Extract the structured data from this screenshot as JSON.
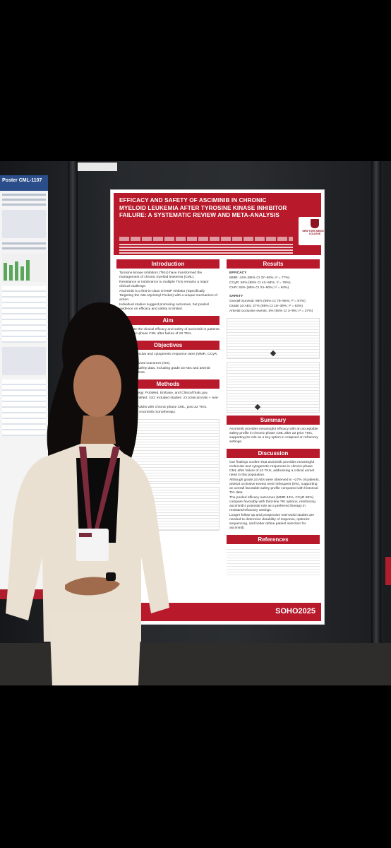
{
  "poster": {
    "title": "EFFICACY AND SAFETY OF ASCIMINIB IN CHRONIC MYELOID LEUKEMIA AFTER TYROSINE KINASE INHIBITOR FAILURE: A SYSTEMATIC REVIEW AND META-ANALYSIS",
    "institution": "NEW YORK MEDICAL COLLEGE",
    "sections": {
      "introduction": "Introduction",
      "aim": "Aim",
      "objectives": "Objectives",
      "methods": "Methods",
      "results": "Results",
      "summary": "Summary",
      "discussion": "Discussion",
      "references": "References"
    },
    "introduction_items": [
      "Tyrosine kinase inhibitors (TKIs) have transformed the management of chronic myeloid leukemia (CML).",
      "Resistance or intolerance to multiple TKIs remains a major clinical challenge.",
      "Asciminib is a first-in-class STAMP inhibitor (Specifically Targeting the ABL Myristoyl Pocket) with a unique mechanism of action.",
      "Individual studies suggest promising outcomes, but pooled evidence on efficacy and safety is limited."
    ],
    "aim_text": "To evaluate the clinical efficacy and safety of asciminib in patients with chronic-phase CML after failure of ≥2 TKIs.",
    "objectives_items": [
      "Assess molecular and cytogenetic response rates (MMR, CCyR, CHR).",
      "Evaluate survival outcomes (OS).",
      "Summarize safety data, including grade ≥3 AEs and arterial occlusive events."
    ],
    "methods_items": [
      "Search strategy: PubMed, Embase, and ClinicalTrials.gov.",
      "Records identified: 310; included studies: 23 (clinical trials + real-world data).",
      "Population: Adults with chronic-phase CML, post ≥2 TKIs.",
      "Intervention: Asciminib monotherapy."
    ],
    "efficacy_label": "EFFICACY",
    "efficacy_items": [
      "MMR: 44% (95% CI 37–50%; I² = 77%)",
      "CCyR: 50% (95% CI 42–58%; I² = 78%)",
      "CHR: 63% (95% CI 24–90%; I² = 94%)"
    ],
    "safety_label": "SAFETY",
    "safety_items": [
      "Overall Survival: 89% (95% CI 78–95%; I² = 87%)",
      "Grade ≥3 AEs: 27% (95% CI 18–39%; I² = 93%)",
      "Arterial occlusive events: 5% (95% CI 3–9%; I² = 27%)"
    ],
    "summary_text": "Asciminib provides meaningful efficacy with an acceptable safety profile in chronic-phase CML after ≥2 prior TKIs, supporting its role as a key option in relapsed or refractory settings.",
    "discussion_items": [
      "Our findings confirm that asciminib provides meaningful molecular and cytogenetic responses in chronic-phase CML after failure of ≥2 TKIs, addressing a critical unmet need in this population.",
      "Although grade ≥3 AEs were observed in ~27% of patients, arterial occlusive events were infrequent (5%), supporting an overall favorable safety profile compared with historical TKI data.",
      "The pooled efficacy outcomes (MMR 44%, CCyR 50%) compare favorably with third-line TKI options, reinforcing asciminib's potential role as a preferred therapy in resistant/refractory settings.",
      "Longer follow-up and prospective real-world studies are needed to determine durability of response, optimize sequencing, and better define patient selection for asciminib."
    ],
    "footer": "SOHO2025"
  },
  "side_poster": {
    "title": "Poster CML-1107"
  },
  "colors": {
    "poster_red": "#b8192b",
    "side_blue": "#2b4e8a",
    "wall": "#26292d"
  }
}
